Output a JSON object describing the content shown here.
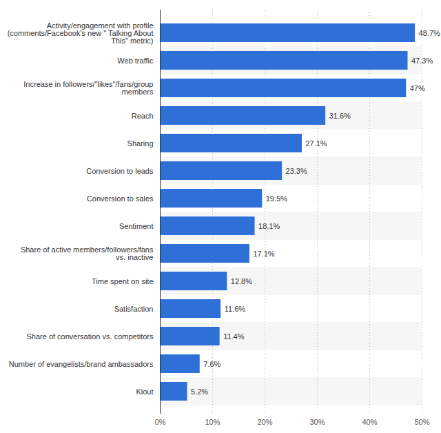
{
  "chart_data": {
    "type": "bar",
    "orientation": "horizontal",
    "categories": [
      "Activity/engagement with profile (comments/Facebook's new \" Talking About This\" metric)",
      "Web traffic",
      "Increase in followers/\"likes\"/fans/group members",
      "Reach",
      "Sharing",
      "Conversion to leads",
      "Conversion to sales",
      "Sentiment",
      "Share of active members/followers/fans vs. inactive",
      "Time spent on site",
      "Satisfaction",
      "Share of conversation vs. competitors",
      "Number of evangelists/brand ambassadors",
      "Klout"
    ],
    "values": [
      48.7,
      47.3,
      47,
      31.6,
      27.1,
      23.3,
      19.5,
      18.1,
      17.1,
      12.8,
      11.6,
      11.4,
      7.6,
      5.2
    ],
    "value_labels": [
      "48.7%",
      "47.3%",
      "47%",
      "31.6%",
      "27.1%",
      "23.3%",
      "19.5%",
      "18.1%",
      "17.1%",
      "12.8%",
      "11.6%",
      "11.4%",
      "7.6%",
      "5.2%"
    ],
    "color": "#2f6fd8",
    "xlim": [
      0,
      50
    ],
    "xticks": [
      {
        "value": 0,
        "label": "0%"
      },
      {
        "value": 10,
        "label": "10%"
      },
      {
        "value": 20,
        "label": "20%"
      },
      {
        "value": 30,
        "label": "30%"
      },
      {
        "value": 40,
        "label": "40%"
      },
      {
        "value": 50,
        "label": "50%"
      }
    ],
    "grid": true,
    "data_labels": true
  }
}
